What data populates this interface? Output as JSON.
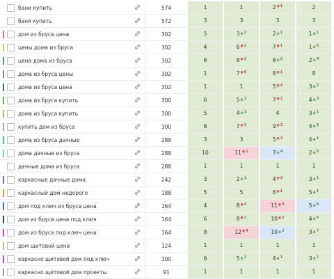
{
  "table": {
    "rows": [
      {
        "keyword": "бани купить",
        "volume": 574,
        "positions": [
          {
            "value": 1
          },
          {
            "value": 1
          },
          {
            "value": 2,
            "arrow": "▼",
            "change": 1
          },
          {
            "value": 2
          }
        ]
      },
      {
        "keyword": "баня купить",
        "volume": 572,
        "positions": [
          {
            "value": 3
          },
          {
            "value": 3
          },
          {
            "value": 3
          },
          {
            "value": 3
          }
        ]
      },
      {
        "keyword": "дом из бруса цена",
        "volume": 302,
        "color": "#b86cd6",
        "positions": [
          {
            "value": 5
          },
          {
            "value": 3,
            "arrow": "▲",
            "change": 2
          },
          {
            "value": 2,
            "arrow": "▲",
            "change": 1
          },
          {
            "value": 1,
            "arrow": "▲",
            "change": 1
          }
        ]
      },
      {
        "keyword": "цены дома из бруса",
        "volume": 302,
        "color": "#c9c94a",
        "positions": [
          {
            "value": 4
          },
          {
            "value": 6,
            "arrow": "▼",
            "change": 2
          },
          {
            "value": 7,
            "arrow": "▼",
            "change": 1
          },
          {
            "value": 1,
            "arrow": "▲",
            "change": 6
          }
        ]
      },
      {
        "keyword": "цена дома из бруса",
        "volume": 302,
        "color": "#3aa39a",
        "positions": [
          {
            "value": 6
          },
          {
            "value": 8,
            "arrow": "▼",
            "change": 2
          },
          {
            "value": 6,
            "arrow": "▲",
            "change": 2
          },
          {
            "value": 2,
            "arrow": "▲",
            "change": 4
          }
        ]
      },
      {
        "keyword": "дома из бруса цены",
        "volume": 302,
        "color": "#6f8a9e",
        "positions": [
          {
            "value": 1
          },
          {
            "value": 7,
            "arrow": "▼",
            "change": 6
          },
          {
            "value": 8,
            "arrow": "▼",
            "change": 1
          },
          {
            "value": 8
          }
        ]
      },
      {
        "keyword": "дома из бруса цена",
        "volume": 302,
        "color": "#2f6f78",
        "positions": [
          {
            "value": 1
          },
          {
            "value": 1
          },
          {
            "value": 5,
            "arrow": "▼",
            "change": 4
          },
          {
            "value": 3,
            "arrow": "▲",
            "change": 2
          }
        ]
      },
      {
        "keyword": "дома из бруса купить",
        "volume": 300,
        "color": "#5cb85c",
        "positions": [
          {
            "value": 6
          },
          {
            "value": 5,
            "arrow": "▲",
            "change": 1
          },
          {
            "value": 7,
            "arrow": "▼",
            "change": 2
          },
          {
            "value": 4,
            "arrow": "▲",
            "change": 3
          }
        ]
      },
      {
        "keyword": "дома из бруса купить",
        "volume": 300,
        "color": "#f0a040",
        "positions": [
          {
            "value": 5
          },
          {
            "value": 4,
            "arrow": "▲",
            "change": 1
          },
          {
            "value": 4
          },
          {
            "value": 3,
            "arrow": "▲",
            "change": 1
          }
        ]
      },
      {
        "keyword": "купить дом из бруса",
        "volume": 300,
        "color": "#a99bd6",
        "positions": [
          {
            "value": 6
          },
          {
            "value": 7,
            "arrow": "▼",
            "change": 1
          },
          {
            "value": 9,
            "arrow": "▼",
            "change": 2
          },
          {
            "value": 4,
            "arrow": "▲",
            "change": 5
          }
        ]
      },
      {
        "keyword": "дома из бруса дачные",
        "volume": 288,
        "color": "#3bbf9a",
        "positions": [
          {
            "value": 3
          },
          {
            "value": 3
          },
          {
            "value": 5,
            "arrow": "▼",
            "change": 2
          },
          {
            "value": 4,
            "arrow": "▲",
            "change": 1
          }
        ]
      },
      {
        "keyword": "дома дачные из бруса",
        "volume": 288,
        "color": "#5fe0b0",
        "positions": [
          {
            "value": 10
          },
          {
            "value": 11,
            "arrow": "▼",
            "change": 1,
            "bg": "#f6d3d6"
          },
          {
            "value": 7,
            "arrow": "▲",
            "change": 4,
            "bg": "#d8e6f6"
          },
          {
            "value": 2,
            "arrow": "▲",
            "change": 5
          }
        ]
      },
      {
        "keyword": "дачные дома из бруса",
        "volume": 288,
        "positions": [
          {
            "value": 1
          },
          {
            "value": 1
          },
          {
            "value": 1
          },
          {
            "value": 1
          }
        ]
      },
      {
        "keyword": "каркасные дачные дома",
        "volume": 242,
        "color": "#8a5cc0",
        "positions": [
          {
            "value": 3
          },
          {
            "value": 2,
            "arrow": "▲",
            "change": 1
          },
          {
            "value": 4,
            "arrow": "▼",
            "change": 2
          },
          {
            "value": 3,
            "arrow": "▲",
            "change": 1
          }
        ]
      },
      {
        "keyword": "каркасный дом недорого",
        "volume": 188,
        "color": "#e8903a",
        "positions": [
          {
            "value": 5
          },
          {
            "value": 5
          },
          {
            "value": 6,
            "arrow": "▼",
            "change": 1
          },
          {
            "value": 5,
            "arrow": "▲",
            "change": 1
          }
        ]
      },
      {
        "keyword": "дом под ключ из бруса цена",
        "volume": 164,
        "color": "#2a7fd4",
        "positions": [
          {
            "value": 4
          },
          {
            "value": 8,
            "arrow": "▼",
            "change": 4
          },
          {
            "value": 11,
            "arrow": "▼",
            "change": 3,
            "bg": "#f6d3d6"
          },
          {
            "value": 5,
            "arrow": "▲",
            "change": 6,
            "bg": "#d8e6f6"
          }
        ]
      },
      {
        "keyword": "дом из бруса цена под ключ",
        "volume": 164,
        "color": "#1f3f6e",
        "positions": [
          {
            "value": 6
          },
          {
            "value": 8,
            "arrow": "▼",
            "change": 2
          },
          {
            "value": 10,
            "arrow": "▼",
            "change": 2
          },
          {
            "value": 4,
            "arrow": "▲",
            "change": 6
          }
        ]
      },
      {
        "keyword": "дом из бруса под ключ цена",
        "volume": 164,
        "color": "#d63fc8",
        "positions": [
          {
            "value": 8
          },
          {
            "value": 12,
            "arrow": "▼",
            "change": 4,
            "bg": "#f6d3d6"
          },
          {
            "value": 10,
            "arrow": "▲",
            "change": 2,
            "bg": "#d8e6f6"
          },
          {
            "value": 3,
            "arrow": "▲",
            "change": 7
          }
        ]
      },
      {
        "keyword": "дом щитовой цена",
        "volume": 124,
        "color": "#c8b48a",
        "positions": [
          {
            "value": 1
          },
          {
            "value": 1
          },
          {
            "value": 1
          },
          {
            "value": 1
          }
        ]
      },
      {
        "keyword": "каркасно щитовой дом под ключ",
        "volume": 100,
        "color": "#e040d0",
        "positions": [
          {
            "value": 6
          },
          {
            "value": 5,
            "arrow": "▲",
            "change": 1
          },
          {
            "value": 4,
            "arrow": "▲",
            "change": 1
          },
          {
            "value": 3,
            "arrow": "▲",
            "change": 1
          }
        ]
      },
      {
        "keyword": "каркасно щитовой дом проекты",
        "volume": 91,
        "color": "#9a9a9a",
        "positions": [
          {
            "value": 1
          },
          {
            "value": 1
          },
          {
            "value": 1
          },
          {
            "value": 1
          }
        ]
      }
    ]
  }
}
